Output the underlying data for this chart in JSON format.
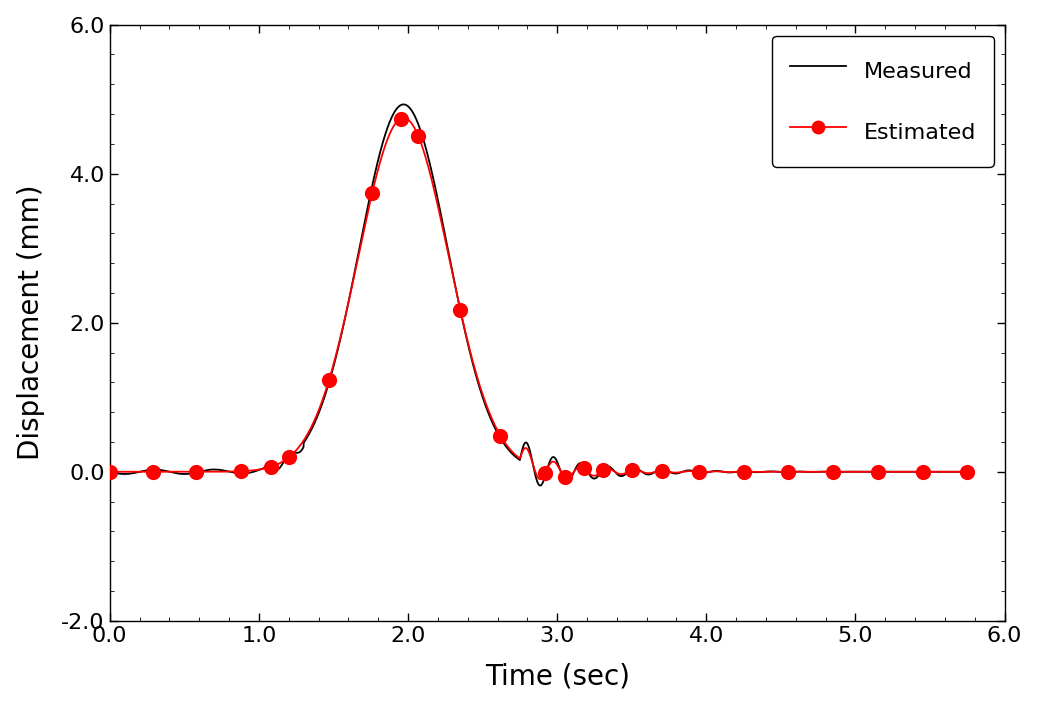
{
  "title": "",
  "xlabel": "Time (sec)",
  "ylabel": "Displacement (mm)",
  "xlim": [
    0.0,
    6.0
  ],
  "ylim": [
    -2.0,
    6.0
  ],
  "xticks": [
    0.0,
    1.0,
    2.0,
    3.0,
    4.0,
    5.0,
    6.0
  ],
  "yticks": [
    -2.0,
    0.0,
    2.0,
    4.0,
    6.0
  ],
  "xtick_labels": [
    "0.0",
    "1.0",
    "2.0",
    "3.0",
    "4.0",
    "5.0",
    "6.0"
  ],
  "ytick_labels": [
    "-2.0",
    "0.0",
    "2.0",
    "4.0",
    "6.0"
  ],
  "measured_color": "#000000",
  "estimated_color": "#ff0000",
  "measured_lw": 1.3,
  "estimated_lw": 1.3,
  "marker_color": "#ff0000",
  "marker_size": 10,
  "legend_labels": [
    "Measured",
    "Estimated"
  ],
  "legend_fontsize": 16,
  "axis_fontsize": 20,
  "tick_fontsize": 16,
  "figsize": [
    10.39,
    7.07
  ],
  "dpi": 100,
  "estimated_times": [
    0.0,
    0.29,
    0.58,
    0.88,
    1.08,
    1.2,
    1.47,
    1.76,
    1.95,
    2.07,
    2.35,
    2.62,
    2.92,
    3.05,
    3.18,
    3.31,
    3.5,
    3.7,
    3.95,
    4.25,
    4.55,
    4.85,
    5.15,
    5.45,
    5.75
  ]
}
